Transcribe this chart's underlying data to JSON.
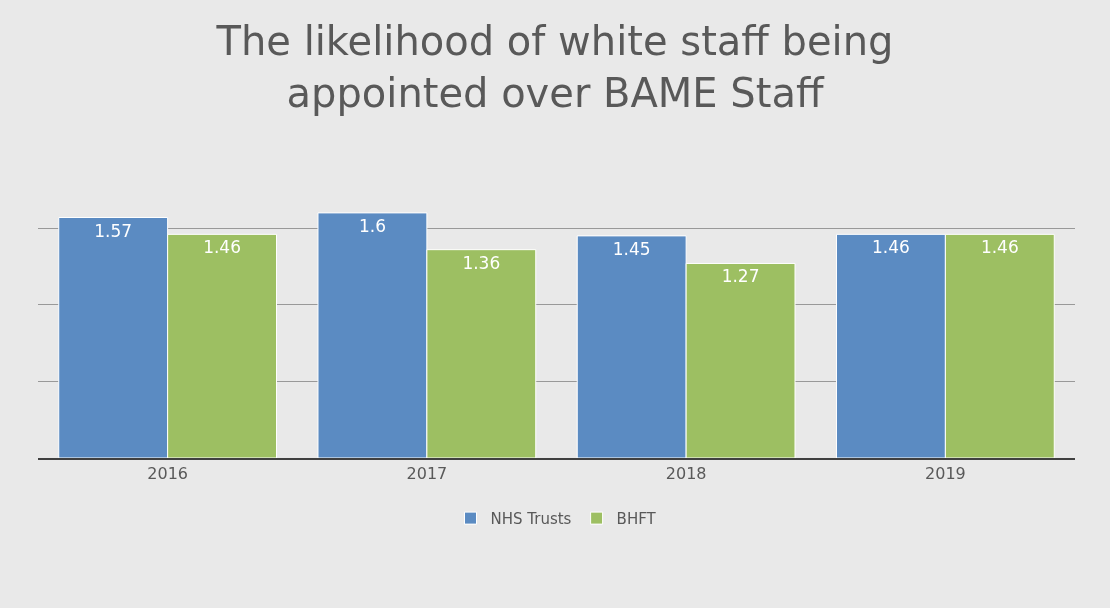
{
  "chart_data": {
    "type": "bar",
    "title": "The likelihood of white staff being\nappointed over BAME Staff",
    "categories": [
      "2016",
      "2017",
      "2018",
      "2019"
    ],
    "series": [
      {
        "name": "NHS Trusts",
        "color": "#5b8bc2",
        "values": [
          1.57,
          1.6,
          1.45,
          1.46
        ]
      },
      {
        "name": "BHFT",
        "color": "#9dbf62",
        "values": [
          1.46,
          1.36,
          1.27,
          1.46
        ]
      }
    ],
    "tick_labels": "x",
    "grid": "y",
    "legend": "bottom",
    "data_labels": true
  }
}
